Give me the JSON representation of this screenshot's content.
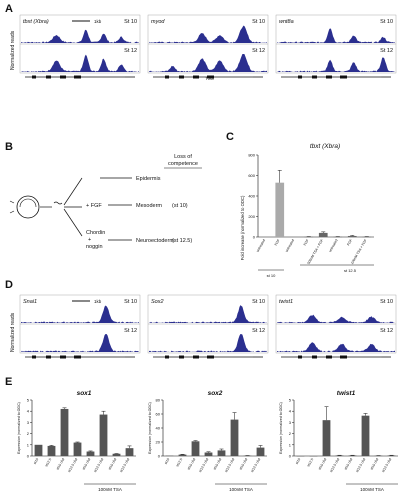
{
  "panels": {
    "A": {
      "letter": "A",
      "ylabel": "Normalized reads",
      "scale_label": "1kb",
      "tracks": [
        {
          "gene": "tbxt (Xbra)",
          "stages": [
            "St 10",
            "St 12"
          ]
        },
        {
          "gene": "myod",
          "stages": [
            "St 10",
            "St 12"
          ]
        },
        {
          "gene": "wnt8a",
          "stages": [
            "St 10",
            "St 12"
          ]
        }
      ],
      "tss_label": "TSS",
      "color": "#2b2f8f"
    },
    "B": {
      "letter": "B",
      "header": [
        "Loss of",
        "competence"
      ],
      "outcomes": [
        {
          "treatment": "",
          "fate": "Epidermis",
          "stage": ""
        },
        {
          "treatment": "+ FGF",
          "fate": "Mesoderm",
          "stage": "(st 10)"
        },
        {
          "treatment": "Chordin + noggin",
          "fate": "Neuroectoderm",
          "stage": "(st 12.5)"
        }
      ]
    },
    "C": {
      "letter": "C",
      "title": "tbxt (Xbra)",
      "ylabel": "Fold increase (normalized to ODC)",
      "group_labels": [
        "st 10",
        "st 12.5"
      ]
    },
    "D": {
      "letter": "D",
      "ylabel": "Normalized reads",
      "scale_label": "1kb",
      "tracks": [
        {
          "gene": "Snai1",
          "stages": [
            "St 10",
            "St 12"
          ]
        },
        {
          "gene": "Sox2",
          "stages": [
            "St 10",
            "St 12"
          ]
        },
        {
          "gene": "twist1",
          "stages": [
            "St 10",
            "St 12"
          ]
        }
      ],
      "color": "#2b2f8f"
    },
    "E": {
      "letter": "E",
      "ylabel": "Expression (normalized to ODC)",
      "treatment_label": "100nM TSA",
      "color": "#555555"
    }
  },
  "chart_data": [
    {
      "type": "bar",
      "panel": "C",
      "title": "tbxt (Xbra)",
      "ylabel": "Fold increase (normalized to ODC)",
      "ylim": [
        0,
        800
      ],
      "yticks": [
        0,
        200,
        400,
        600,
        800
      ],
      "categories": [
        "untreated",
        "FGF",
        "untreated",
        "FGF",
        "500nM TSA + FGF",
        "untreated",
        "FGF",
        "100nM TSA + FGF"
      ],
      "values": [
        0,
        530,
        0,
        2,
        40,
        2,
        10,
        2
      ],
      "errors": [
        0,
        120,
        0,
        2,
        10,
        2,
        5,
        2
      ],
      "colors": [
        "#888888",
        "#aaaaaa",
        "#888888",
        "#666666",
        "#666666",
        "#666666",
        "#666666",
        "#666666"
      ]
    },
    {
      "type": "bar",
      "panel": "E",
      "title": "sox1",
      "ylim": [
        0,
        5
      ],
      "yticks": [
        0,
        1,
        2,
        3,
        4,
        5
      ],
      "categories": [
        "st10",
        "st12.5",
        "st10 chd",
        "st12.5 chd",
        "st10 chd",
        "st12.5 chd",
        "st10 chd",
        "st12.5 chd"
      ],
      "values": [
        1.0,
        0.9,
        4.2,
        1.2,
        0.4,
        3.7,
        0.2,
        0.7
      ],
      "errors": [
        0,
        0.05,
        0.1,
        0.05,
        0.05,
        0.3,
        0.02,
        0.2
      ]
    },
    {
      "type": "bar",
      "panel": "E",
      "title": "sox2",
      "ylim": [
        0,
        80
      ],
      "yticks": [
        0,
        20,
        40,
        60,
        80
      ],
      "categories": [
        "st10",
        "st12.5",
        "st10 chd",
        "st12.5 chd",
        "st10 chd",
        "st12.5 chd",
        "st10 chd",
        "st12.5 chd"
      ],
      "values": [
        0.5,
        2,
        21,
        5,
        8,
        52,
        0.5,
        12
      ],
      "errors": [
        0,
        0.5,
        1,
        1,
        2,
        10,
        0.2,
        3
      ]
    },
    {
      "type": "bar",
      "panel": "E",
      "title": "twist1",
      "ylim": [
        0,
        5
      ],
      "yticks": [
        0,
        1,
        2,
        3,
        4,
        5
      ],
      "categories": [
        "st10",
        "st12.5",
        "st10 chd",
        "st12.5 chd",
        "st10 chd",
        "st12.5 chd",
        "st10 chd",
        "st12.5 chd"
      ],
      "values": [
        0,
        0,
        3.2,
        0.05,
        0.05,
        3.6,
        0.03,
        0.05
      ],
      "errors": [
        0,
        0,
        1.2,
        0.02,
        0.02,
        0.2,
        0.01,
        0.02
      ]
    }
  ]
}
